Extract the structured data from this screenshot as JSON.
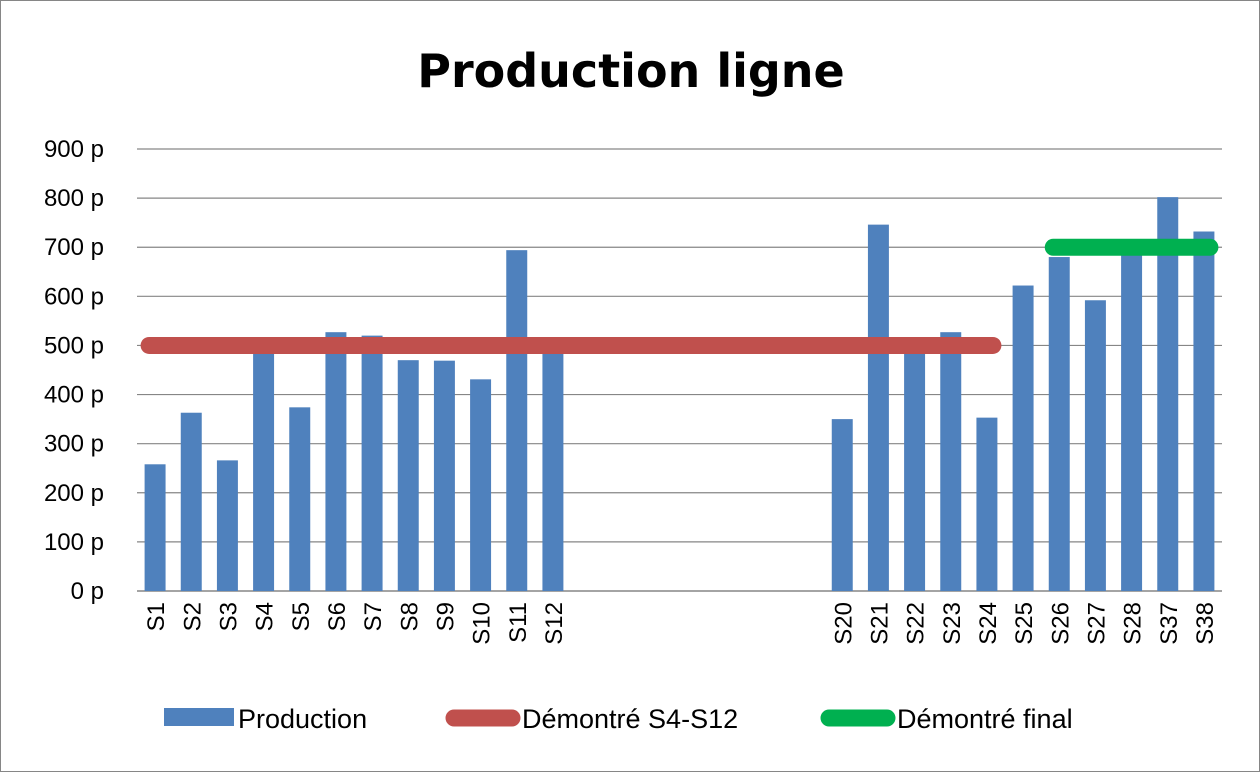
{
  "chart_data": {
    "type": "bar",
    "title": "Production ligne",
    "xlabel": "",
    "ylabel": "",
    "ylim": [
      0,
      900
    ],
    "y_ticks": [
      0,
      100,
      200,
      300,
      400,
      500,
      600,
      700,
      800,
      900
    ],
    "y_tick_suffix": " p",
    "grid": true,
    "legend_position": "bottom",
    "categories": [
      "S1",
      "S2",
      "S3",
      "S4",
      "S5",
      "S6",
      "S7",
      "S8",
      "S9",
      "S10",
      "S11",
      "S12",
      "",
      "",
      "",
      "",
      "",
      "",
      "",
      "S20",
      "S21",
      "S22",
      "S23",
      "S24",
      "S25",
      "S26",
      "S27",
      "S28",
      "S37",
      "S38"
    ],
    "series": [
      {
        "name": "Production",
        "kind": "bar",
        "color": "#4F81BD",
        "values": [
          258,
          363,
          266,
          490,
          374,
          527,
          520,
          470,
          469,
          431,
          694,
          490,
          null,
          null,
          null,
          null,
          null,
          null,
          null,
          350,
          746,
          490,
          527,
          353,
          622,
          680,
          592,
          690,
          802,
          732
        ]
      },
      {
        "name": "Démontré S4-S12",
        "kind": "line",
        "color": "#C0504D",
        "value": 500,
        "from": "S1",
        "to": "S24"
      },
      {
        "name": "Démontré final",
        "kind": "line",
        "color": "#00B050",
        "value": 700,
        "from": "S26",
        "to": "S38"
      }
    ]
  }
}
